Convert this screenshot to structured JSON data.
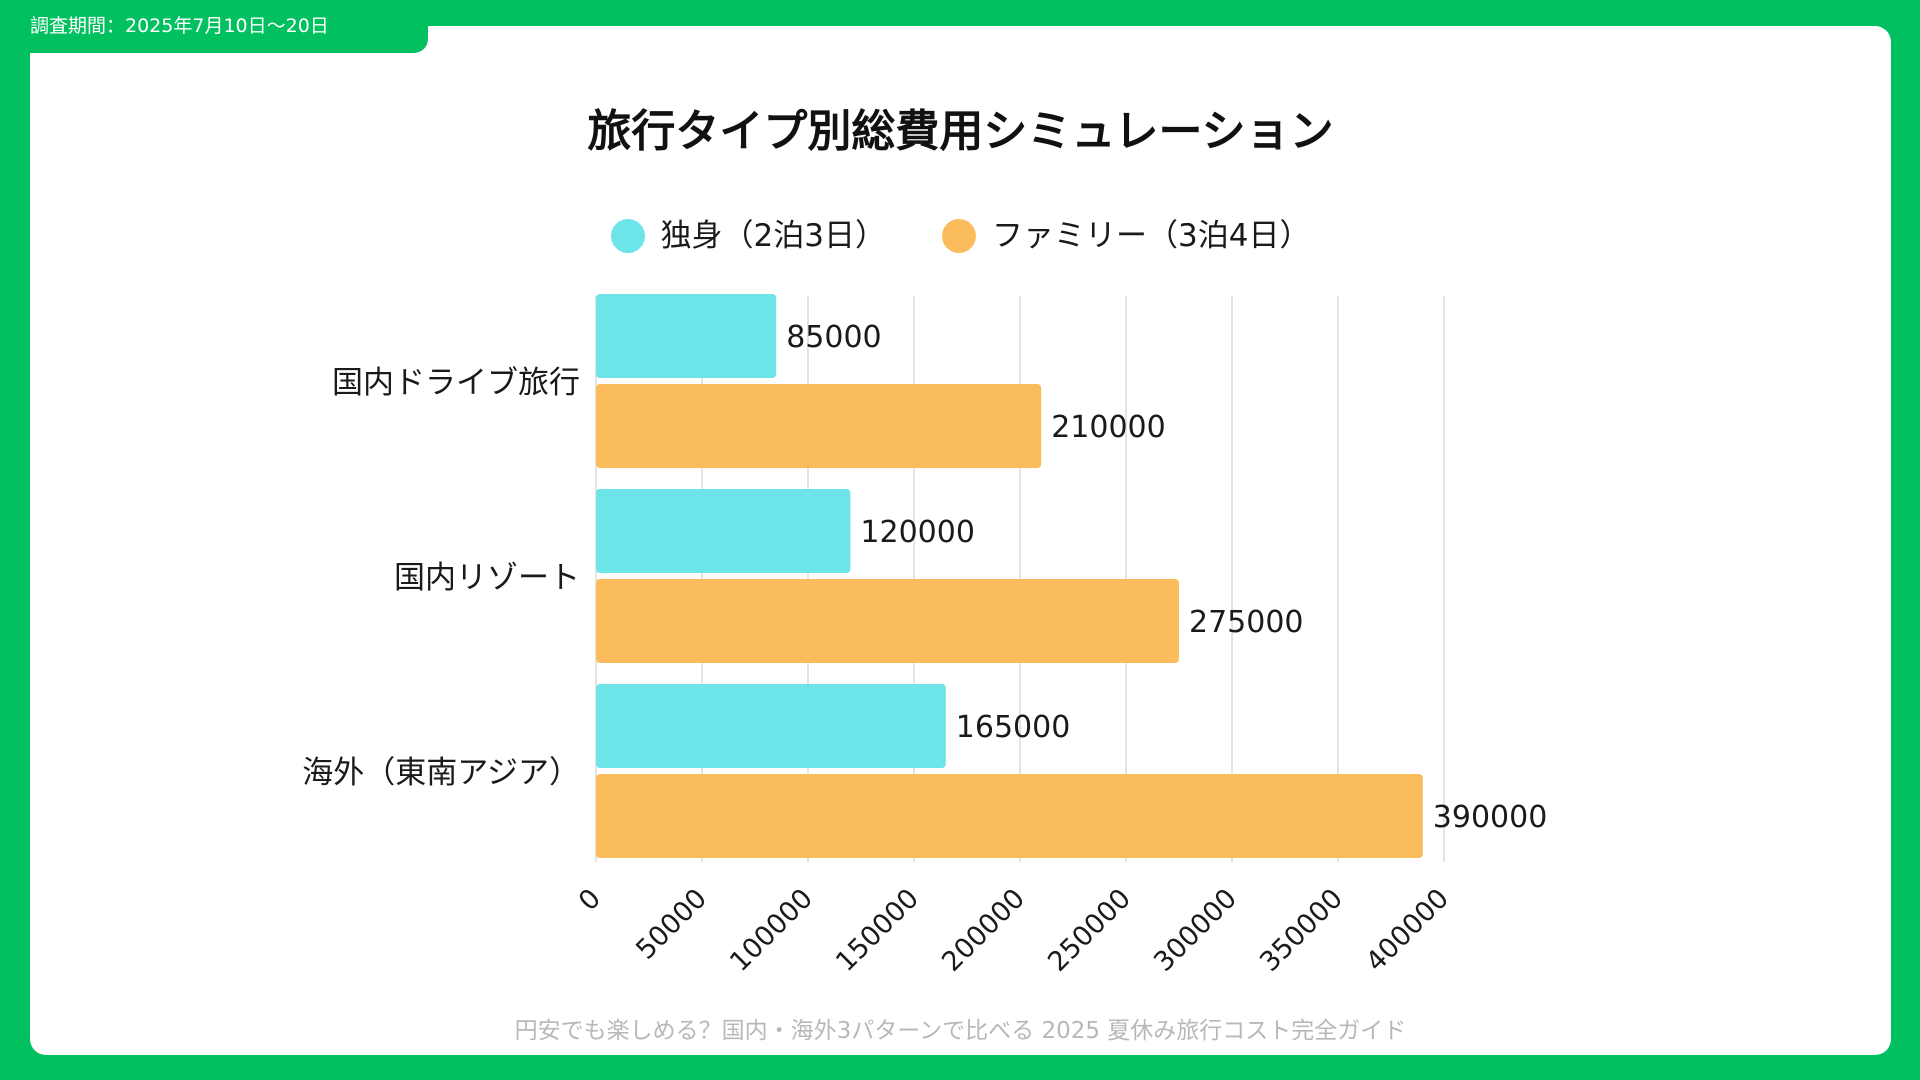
{
  "header": {
    "survey_period": "調査期間：2025年7月10日〜20日"
  },
  "footer": {
    "text": "円安でも楽しめる？国内・海外3パターンで比べる 2025 夏休み旅行コスト完全ガイド"
  },
  "colors": {
    "frame": "#00c060",
    "series_single": "#6ce4e8",
    "series_family": "#fbbd5c"
  },
  "chart_data": {
    "type": "bar",
    "orientation": "horizontal",
    "title": "旅行タイプ別総費用シミュレーション",
    "categories": [
      "国内ドライブ旅行",
      "国内リゾート",
      "海外（東南アジア）"
    ],
    "series": [
      {
        "name": "独身（2泊3日）",
        "color": "#6ce4e8",
        "values": [
          85000,
          120000,
          165000
        ],
        "labels": [
          "85000",
          "120000",
          "165000"
        ]
      },
      {
        "name": "ファミリー（3泊4日）",
        "color": "#fbbd5c",
        "values": [
          210000,
          275000,
          390000
        ],
        "labels": [
          "210000",
          "275000",
          "390000"
        ]
      }
    ],
    "xlim": [
      0,
      400000
    ],
    "xticks": [
      "0",
      "50000",
      "100000",
      "150000",
      "200000",
      "250000",
      "300000",
      "350000",
      "400000"
    ],
    "xtick_values": [
      0,
      50000,
      100000,
      150000,
      200000,
      250000,
      300000,
      350000,
      400000
    ],
    "xlabel": "",
    "ylabel": "",
    "grid": true,
    "legend_position": "top-center",
    "data_labels": true
  }
}
